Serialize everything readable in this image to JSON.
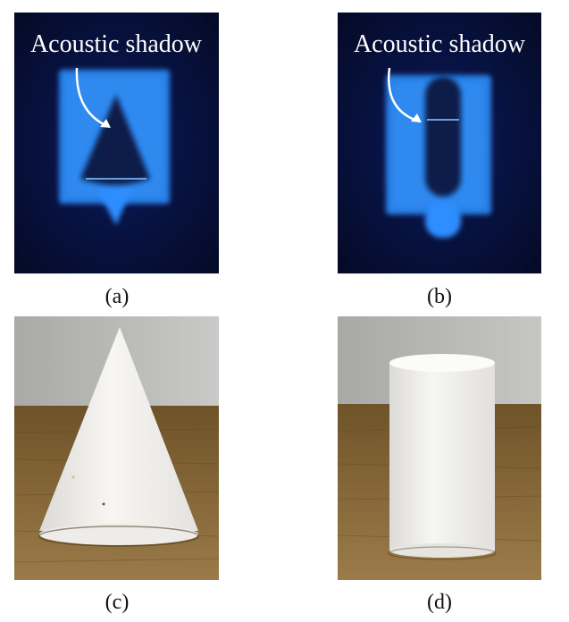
{
  "panels": {
    "a": {
      "caption": "(a)",
      "annotation": "Acoustic shadow",
      "colors": {
        "background": "#050a2a",
        "glow": "#2f8dff",
        "shadow": "#0a1a4a"
      }
    },
    "b": {
      "caption": "(b)",
      "annotation": "Acoustic shadow",
      "colors": {
        "background": "#050a2a",
        "glow": "#2f8dff",
        "shadow": "#0a1a4a"
      }
    },
    "c": {
      "caption": "(c)",
      "colors": {
        "wall": "#bdbdbb",
        "table": "#8a6a3a",
        "object": "#f4f2ee"
      }
    },
    "d": {
      "caption": "(d)",
      "colors": {
        "wall": "#b9b9b7",
        "table": "#8b6b3b",
        "object": "#f2f2f0"
      }
    }
  }
}
